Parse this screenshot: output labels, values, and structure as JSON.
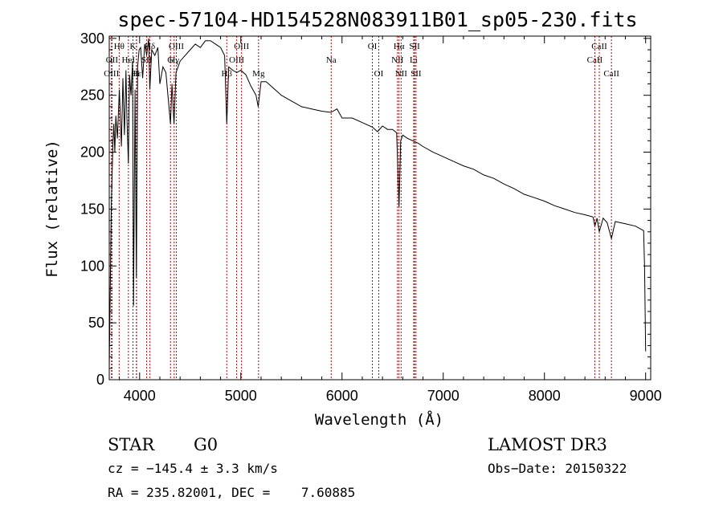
{
  "chart_data": {
    "type": "line",
    "title": "spec-57104-HD154528N083911B01_sp05-230.fits",
    "xlabel": "Wavelength (Å)",
    "ylabel": "Flux (relative)",
    "xlim": [
      3700,
      9050
    ],
    "ylim": [
      0,
      302
    ],
    "xticks": [
      4000,
      5000,
      6000,
      7000,
      8000,
      9000
    ],
    "xtick_labels": [
      "4000",
      "5000",
      "6000",
      "7000",
      "8000",
      "9000"
    ],
    "yticks": [
      0,
      50,
      100,
      150,
      200,
      250,
      300
    ],
    "ytick_labels": [
      "0",
      "50",
      "100",
      "150",
      "200",
      "250",
      "300"
    ],
    "series": [
      {
        "name": "spectrum",
        "x": [
          3700,
          3720,
          3735,
          3745,
          3755,
          3765,
          3780,
          3800,
          3820,
          3835,
          3850,
          3865,
          3875,
          3889,
          3900,
          3915,
          3930,
          3940,
          3955,
          3968,
          3980,
          3995,
          4010,
          4030,
          4050,
          4070,
          4090,
          4101,
          4120,
          4150,
          4180,
          4200,
          4230,
          4260,
          4290,
          4305,
          4320,
          4340,
          4360,
          4400,
          4450,
          4500,
          4550,
          4600,
          4650,
          4700,
          4750,
          4800,
          4840,
          4861,
          4880,
          4920,
          4960,
          5000,
          5050,
          5100,
          5150,
          5172,
          5200,
          5250,
          5300,
          5350,
          5400,
          5500,
          5600,
          5700,
          5800,
          5890,
          5950,
          6000,
          6100,
          6200,
          6300,
          6350,
          6400,
          6450,
          6500,
          6540,
          6563,
          6580,
          6600,
          6650,
          6700,
          6750,
          6800,
          6900,
          7000,
          7100,
          7200,
          7300,
          7400,
          7500,
          7600,
          7650,
          7700,
          7800,
          7900,
          8000,
          8100,
          8200,
          8300,
          8400,
          8480,
          8498,
          8520,
          8542,
          8580,
          8620,
          8662,
          8700,
          8800,
          8900,
          8980,
          8990,
          9000
        ],
        "y": [
          10,
          150,
          205,
          225,
          200,
          232,
          212,
          255,
          205,
          265,
          215,
          272,
          230,
          190,
          268,
          250,
          280,
          65,
          255,
          90,
          275,
          290,
          292,
          265,
          295,
          285,
          300,
          255,
          290,
          285,
          292,
          260,
          275,
          270,
          240,
          225,
          260,
          225,
          270,
          280,
          285,
          290,
          295,
          292,
          298,
          298,
          295,
          292,
          285,
          225,
          275,
          272,
          270,
          272,
          268,
          258,
          250,
          240,
          262,
          262,
          258,
          254,
          250,
          245,
          240,
          238,
          236,
          235,
          238,
          230,
          230,
          226,
          222,
          218,
          223,
          220,
          220,
          217,
          152,
          210,
          215,
          212,
          210,
          208,
          205,
          200,
          196,
          192,
          188,
          185,
          180,
          177,
          172,
          170,
          168,
          163,
          160,
          157,
          153,
          150,
          147,
          145,
          143,
          135,
          142,
          130,
          142,
          138,
          124,
          139,
          137,
          135,
          131,
          98,
          25
        ]
      }
    ],
    "line_markers": [
      {
        "name": "Hθ",
        "x": 3798,
        "row": 1
      },
      {
        "name": "OII",
        "x": 3727,
        "row": 2
      },
      {
        "name": "OIII",
        "x": 3722,
        "row": 3
      },
      {
        "name": "HeI",
        "x": 3889,
        "row": 2
      },
      {
        "name": "K",
        "x": 3934,
        "row": 1
      },
      {
        "name": "Hε",
        "x": 3970,
        "row": 3
      },
      {
        "name": "H",
        "x": 3968,
        "row": 3
      },
      {
        "name": "Hδ",
        "x": 4102,
        "row": 1
      },
      {
        "name": "SII",
        "x": 4070,
        "row": 2
      },
      {
        "name": "G",
        "x": 4305,
        "row": 2
      },
      {
        "name": "OIII",
        "x": 4363,
        "row": 1
      },
      {
        "name": "Hγ",
        "x": 4341,
        "row": 2
      },
      {
        "name": "Hβ",
        "x": 4861,
        "row": 3
      },
      {
        "name": "OIII",
        "x": 5007,
        "row": 1
      },
      {
        "name": "OIII",
        "x": 4959,
        "row": 2
      },
      {
        "name": "Mg",
        "x": 5175,
        "row": 3
      },
      {
        "name": "Na",
        "x": 5893,
        "row": 2
      },
      {
        "name": "OI",
        "x": 6300,
        "row": 1
      },
      {
        "name": "OI",
        "x": 6363,
        "row": 3
      },
      {
        "name": "Hα",
        "x": 6563,
        "row": 1
      },
      {
        "name": "NII",
        "x": 6548,
        "row": 2
      },
      {
        "name": "NII",
        "x": 6584,
        "row": 3
      },
      {
        "name": "SII",
        "x": 6717,
        "row": 1
      },
      {
        "name": "Li",
        "x": 6708,
        "row": 2
      },
      {
        "name": "SII",
        "x": 6731,
        "row": 3
      },
      {
        "name": "CaII",
        "x": 8542,
        "row": 1
      },
      {
        "name": "CaII",
        "x": 8498,
        "row": 2
      },
      {
        "name": "CaII",
        "x": 8662,
        "row": 3
      }
    ],
    "grid": false,
    "legend": "none"
  },
  "info": {
    "object_type": "STAR",
    "subclass": "G0",
    "survey": "LAMOST DR3",
    "cz": "cz = −145.4 ± 3.3 km/s",
    "obs_date": "Obs−Date: 20150322",
    "coords": "RA = 235.82001, DEC =    7.60885"
  }
}
